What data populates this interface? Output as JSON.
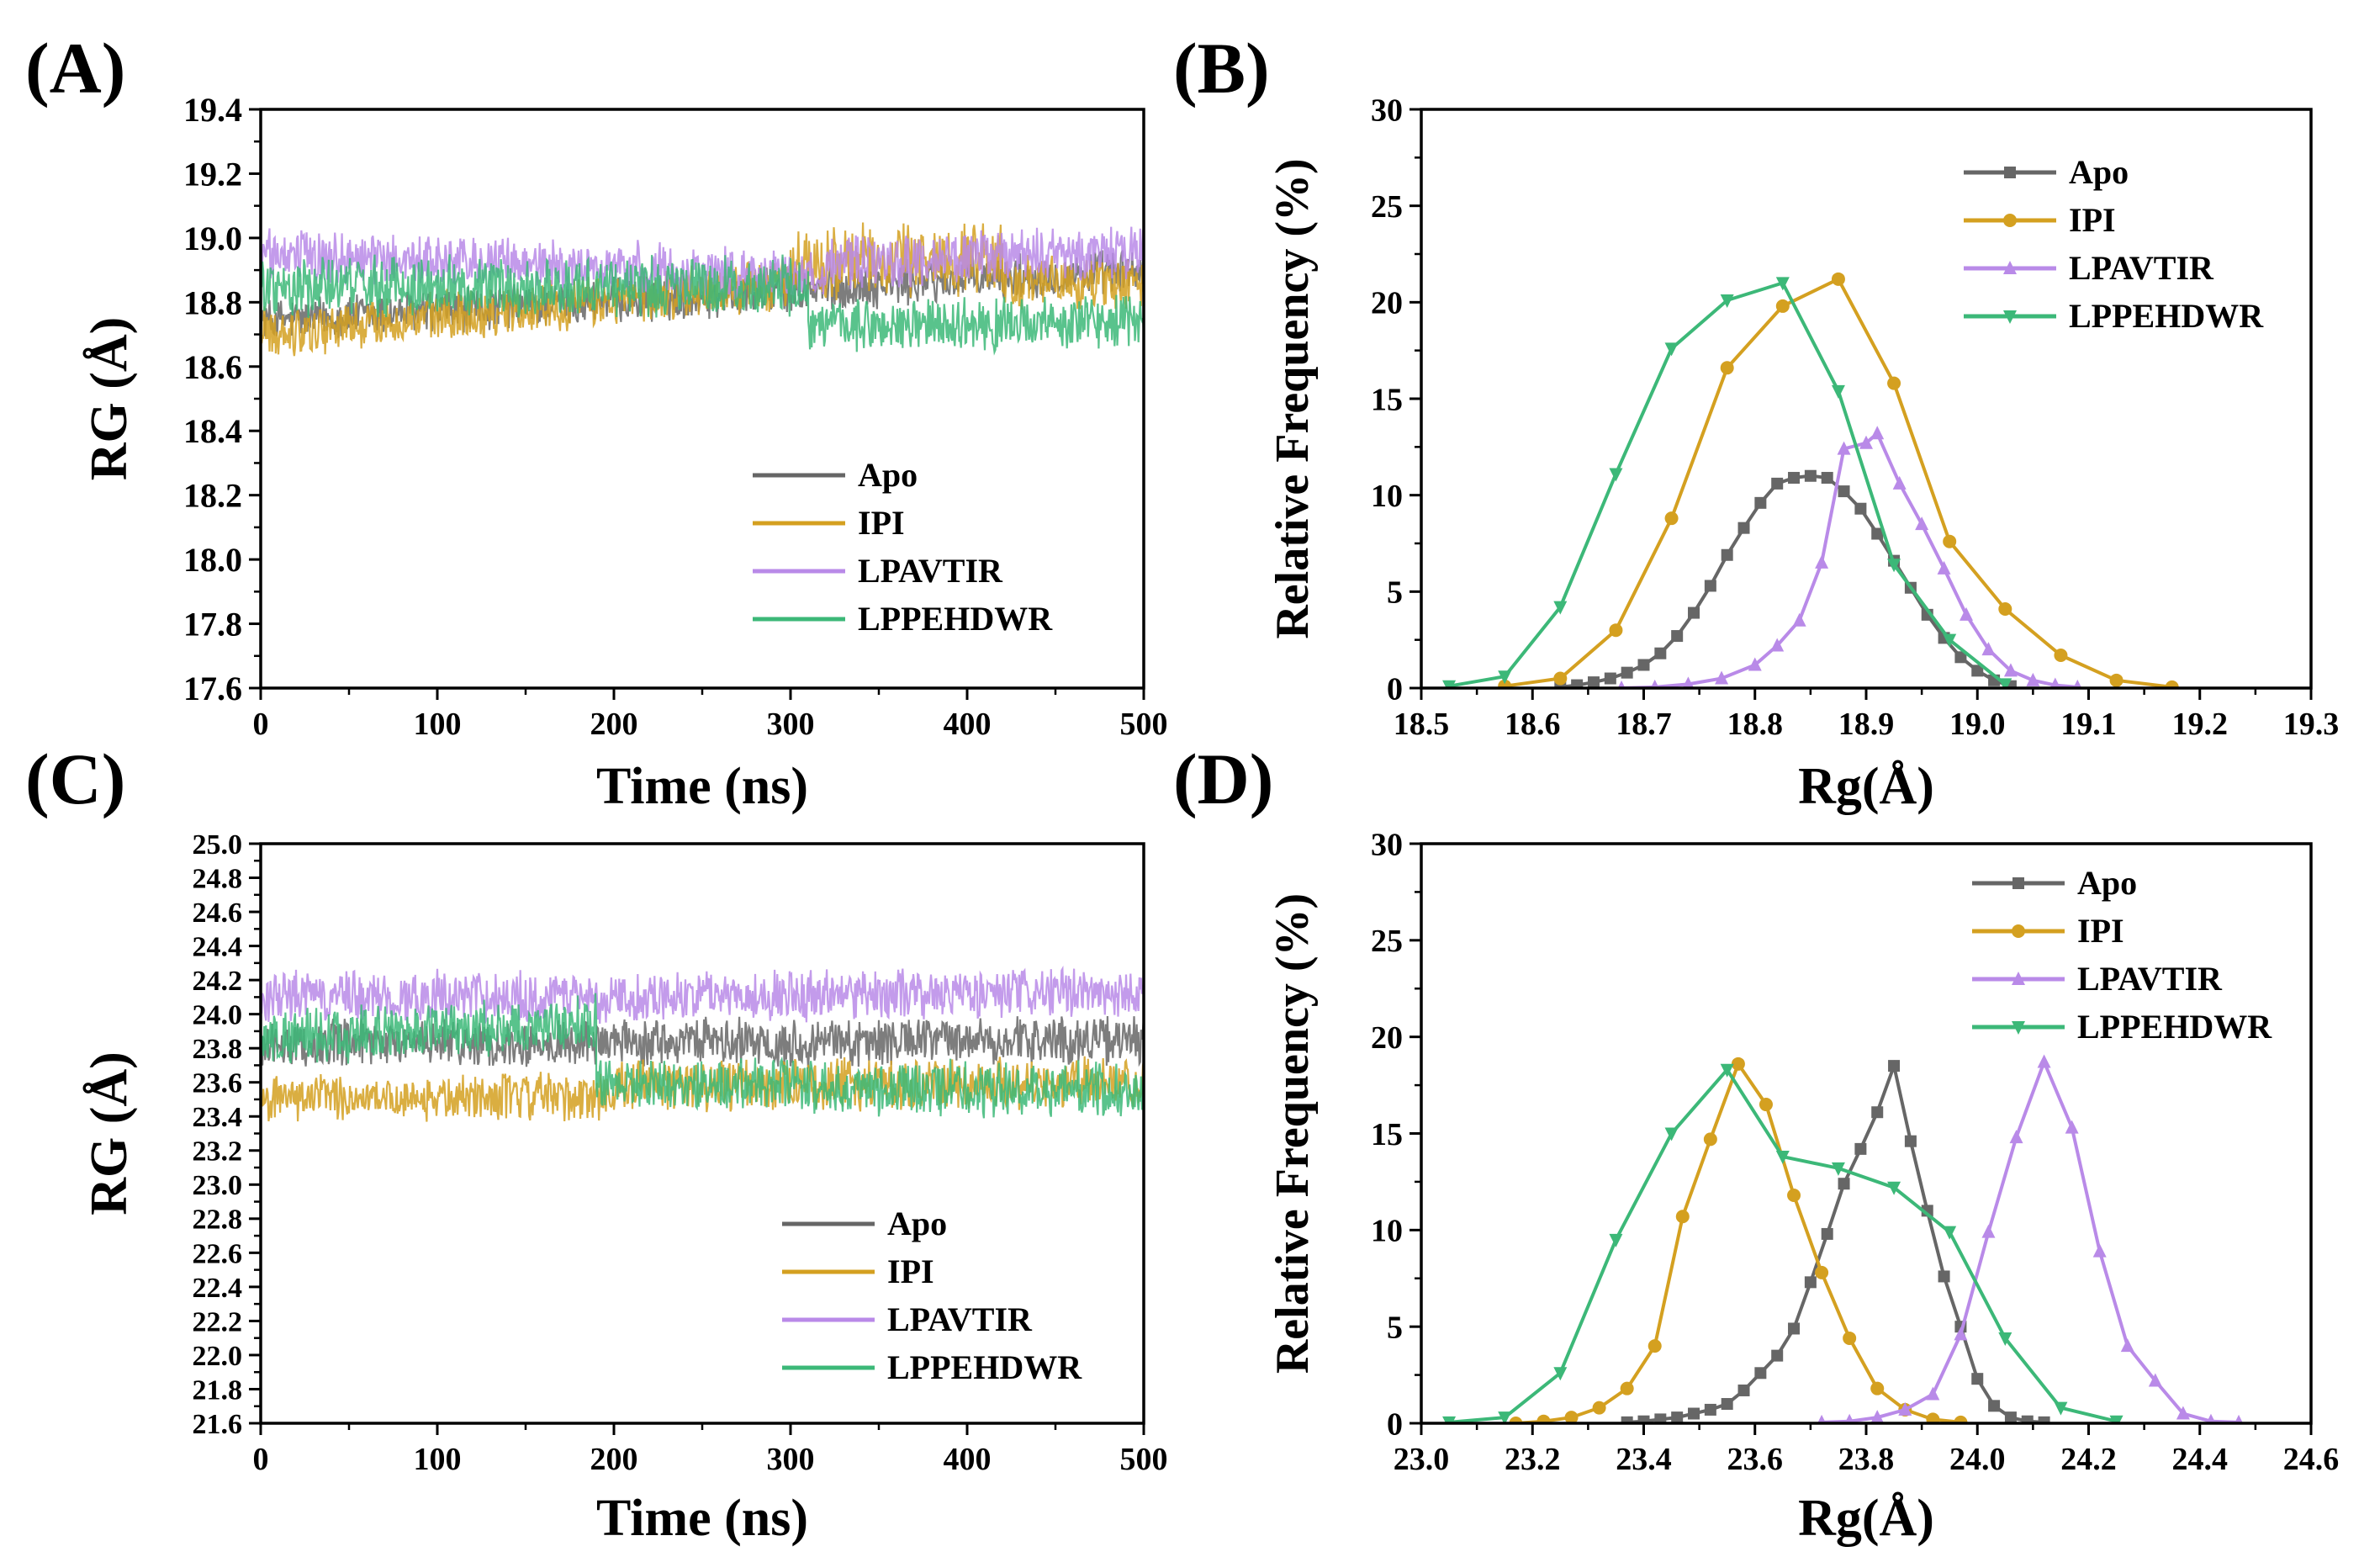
{
  "colors": {
    "Apo": "#666666",
    "IPI": "#d4a020",
    "LPAVTIR": "#b98ae8",
    "LPPEHDWR": "#3cb878"
  },
  "chart_data": [
    {
      "panel_label": "(A)",
      "type": "line",
      "xlabel": "Time (ns)",
      "ylabel": "RG (Å)",
      "xlim": [
        0,
        500
      ],
      "ylim": [
        17.6,
        19.4
      ],
      "xticks": [
        "0",
        "100",
        "200",
        "300",
        "400",
        "500"
      ],
      "yticks": [
        "17.6",
        "17.8",
        "18.0",
        "18.2",
        "18.4",
        "18.6",
        "18.8",
        "19.0",
        "19.2",
        "19.4"
      ],
      "legend_position": "bottom-center",
      "series": [
        {
          "name": "Apo",
          "color": "#666666",
          "segments": [
            {
              "t0": 0,
              "t1": 500,
              "y0": 18.74,
              "y1": 18.9,
              "noise": 0.06
            }
          ]
        },
        {
          "name": "IPI",
          "color": "#d4a020",
          "segments": [
            {
              "t0": 0,
              "t1": 300,
              "y0": 18.7,
              "y1": 18.86,
              "noise": 0.07
            },
            {
              "t0": 300,
              "t1": 420,
              "y0": 18.92,
              "y1": 18.94,
              "noise": 0.1
            },
            {
              "t0": 420,
              "t1": 500,
              "y0": 18.86,
              "y1": 18.86,
              "noise": 0.07
            }
          ]
        },
        {
          "name": "LPAVTIR",
          "color": "#b98ae8",
          "segments": [
            {
              "t0": 0,
              "t1": 320,
              "y0": 18.95,
              "y1": 18.88,
              "noise": 0.07
            },
            {
              "t0": 320,
              "t1": 500,
              "y0": 18.92,
              "y1": 18.96,
              "noise": 0.07
            }
          ]
        },
        {
          "name": "LPPEHDWR",
          "color": "#3cb878",
          "segments": [
            {
              "t0": 0,
              "t1": 310,
              "y0": 18.85,
              "y1": 18.85,
              "noise": 0.08
            },
            {
              "t0": 310,
              "t1": 500,
              "y0": 18.72,
              "y1": 18.74,
              "noise": 0.07
            }
          ]
        }
      ]
    },
    {
      "panel_label": "(B)",
      "type": "line",
      "xlabel": "Rg(Å)",
      "ylabel": "Relative Frequency (%)",
      "xlim": [
        18.5,
        19.3
      ],
      "ylim": [
        0,
        30
      ],
      "xticks": [
        "18.5",
        "18.6",
        "18.7",
        "18.8",
        "18.9",
        "19.0",
        "19.1",
        "19.2",
        "19.3"
      ],
      "yticks": [
        "0",
        "5",
        "10",
        "15",
        "20",
        "25",
        "30"
      ],
      "legend_position": "top-right",
      "series": [
        {
          "name": "Apo",
          "color": "#666666",
          "marker": "square",
          "x": [
            18.625,
            18.64,
            18.655,
            18.67,
            18.685,
            18.7,
            18.715,
            18.73,
            18.745,
            18.76,
            18.775,
            18.79,
            18.805,
            18.82,
            18.835,
            18.85,
            18.865,
            18.88,
            18.895,
            18.91,
            18.925,
            18.94,
            18.955,
            18.97,
            18.985,
            19.0,
            19.015,
            19.03
          ],
          "y": [
            0.05,
            0.15,
            0.3,
            0.5,
            0.8,
            1.2,
            1.8,
            2.7,
            3.9,
            5.3,
            6.9,
            8.3,
            9.6,
            10.6,
            10.9,
            11.0,
            10.9,
            10.2,
            9.3,
            8.0,
            6.6,
            5.2,
            3.8,
            2.6,
            1.6,
            0.9,
            0.4,
            0.1
          ]
        },
        {
          "name": "IPI",
          "color": "#d4a020",
          "marker": "circle",
          "x": [
            18.575,
            18.625,
            18.675,
            18.725,
            18.775,
            18.825,
            18.875,
            18.925,
            18.975,
            19.025,
            19.075,
            19.125,
            19.175
          ],
          "y": [
            0.1,
            0.5,
            3.0,
            8.8,
            16.6,
            19.8,
            21.2,
            15.8,
            7.6,
            4.1,
            1.7,
            0.4,
            0.05
          ]
        },
        {
          "name": "LPAVTIR",
          "color": "#b98ae8",
          "marker": "triangle-up",
          "x": [
            18.68,
            18.71,
            18.74,
            18.77,
            18.8,
            18.82,
            18.84,
            18.86,
            18.88,
            18.9,
            18.91,
            18.93,
            18.95,
            18.97,
            18.99,
            19.01,
            19.03,
            19.05,
            19.07,
            19.09
          ],
          "y": [
            0.0,
            0.05,
            0.2,
            0.5,
            1.2,
            2.2,
            3.5,
            6.5,
            12.4,
            12.7,
            13.2,
            10.6,
            8.5,
            6.2,
            3.8,
            2.0,
            0.9,
            0.4,
            0.15,
            0.05
          ]
        },
        {
          "name": "LPPEHDWR",
          "color": "#3cb878",
          "marker": "triangle-down",
          "x": [
            18.525,
            18.575,
            18.625,
            18.675,
            18.725,
            18.775,
            18.825,
            18.875,
            18.925,
            18.975,
            19.025
          ],
          "y": [
            0.1,
            0.6,
            4.2,
            11.1,
            17.6,
            20.1,
            21.0,
            15.4,
            6.4,
            2.5,
            0.2
          ]
        }
      ]
    },
    {
      "panel_label": "(C)",
      "type": "line",
      "xlabel": "Time (ns)",
      "ylabel": "RG (Å)",
      "xlim": [
        0,
        500
      ],
      "ylim": [
        21.6,
        25.0
      ],
      "xticks": [
        "0",
        "100",
        "200",
        "300",
        "400",
        "500"
      ],
      "yticks": [
        "21.6",
        "21.8",
        "22.0",
        "22.2",
        "22.4",
        "22.6",
        "22.8",
        "23.0",
        "23.2",
        "23.4",
        "23.6",
        "23.8",
        "24.0",
        "24.2",
        "24.4",
        "24.6",
        "24.8",
        "25.0"
      ],
      "legend_position": "bottom-center",
      "series": [
        {
          "name": "Apo",
          "color": "#666666",
          "segments": [
            {
              "t0": 0,
              "t1": 500,
              "y0": 23.82,
              "y1": 23.85,
              "noise": 0.12
            }
          ]
        },
        {
          "name": "IPI",
          "color": "#d4a020",
          "segments": [
            {
              "t0": 0,
              "t1": 200,
              "y0": 23.5,
              "y1": 23.52,
              "noise": 0.12
            },
            {
              "t0": 200,
              "t1": 500,
              "y0": 23.58,
              "y1": 23.6,
              "noise": 0.13
            }
          ]
        },
        {
          "name": "LPAVTIR",
          "color": "#b98ae8",
          "segments": [
            {
              "t0": 0,
              "t1": 500,
              "y0": 24.1,
              "y1": 24.12,
              "noise": 0.13
            }
          ]
        },
        {
          "name": "LPPEHDWR",
          "color": "#3cb878",
          "segments": [
            {
              "t0": 0,
              "t1": 190,
              "y0": 23.85,
              "y1": 23.95,
              "noise": 0.14
            },
            {
              "t0": 190,
              "t1": 500,
              "y0": 23.6,
              "y1": 23.55,
              "noise": 0.14
            }
          ]
        }
      ]
    },
    {
      "panel_label": "(D)",
      "type": "line",
      "xlabel": "Rg(Å)",
      "ylabel": "Relative Frequency (%)",
      "xlim": [
        23.0,
        24.6
      ],
      "ylim": [
        0,
        30
      ],
      "xticks": [
        "23.0",
        "23.2",
        "23.4",
        "23.6",
        "23.8",
        "24.0",
        "24.2",
        "24.4",
        "24.6"
      ],
      "yticks": [
        "0",
        "5",
        "10",
        "15",
        "20",
        "25",
        "30"
      ],
      "legend_position": "top-right",
      "series": [
        {
          "name": "Apo",
          "color": "#666666",
          "marker": "square",
          "x": [
            23.37,
            23.4,
            23.43,
            23.46,
            23.49,
            23.52,
            23.55,
            23.58,
            23.61,
            23.64,
            23.67,
            23.7,
            23.73,
            23.76,
            23.79,
            23.82,
            23.85,
            23.88,
            23.91,
            23.94,
            23.97,
            24.0,
            24.03,
            24.06,
            24.09,
            24.12
          ],
          "y": [
            0.05,
            0.1,
            0.2,
            0.3,
            0.5,
            0.7,
            1.0,
            1.7,
            2.6,
            3.5,
            4.9,
            7.3,
            9.8,
            12.4,
            14.2,
            16.1,
            18.5,
            14.6,
            11.0,
            7.6,
            5.0,
            2.3,
            0.9,
            0.3,
            0.1,
            0.05
          ]
        },
        {
          "name": "IPI",
          "color": "#d4a020",
          "marker": "circle",
          "x": [
            23.17,
            23.22,
            23.27,
            23.32,
            23.37,
            23.42,
            23.47,
            23.52,
            23.57,
            23.62,
            23.67,
            23.72,
            23.77,
            23.82,
            23.87,
            23.92,
            23.97
          ],
          "y": [
            0.0,
            0.1,
            0.3,
            0.8,
            1.8,
            4.0,
            10.7,
            14.7,
            18.6,
            16.5,
            11.8,
            7.8,
            4.4,
            1.8,
            0.7,
            0.2,
            0.05
          ]
        },
        {
          "name": "LPAVTIR",
          "color": "#b98ae8",
          "marker": "triangle-up",
          "x": [
            23.72,
            23.77,
            23.82,
            23.87,
            23.92,
            23.97,
            24.02,
            24.07,
            24.12,
            24.17,
            24.22,
            24.27,
            24.32,
            24.37,
            24.42,
            24.47
          ],
          "y": [
            0.05,
            0.1,
            0.3,
            0.7,
            1.5,
            4.6,
            9.9,
            14.8,
            18.7,
            15.3,
            8.9,
            4.0,
            2.2,
            0.5,
            0.1,
            0.05
          ]
        },
        {
          "name": "LPPEHDWR",
          "color": "#3cb878",
          "marker": "triangle-down",
          "x": [
            23.05,
            23.15,
            23.25,
            23.35,
            23.45,
            23.55,
            23.65,
            23.75,
            23.85,
            23.95,
            24.05,
            24.15,
            24.25
          ],
          "y": [
            0.05,
            0.3,
            2.6,
            9.5,
            15.0,
            18.3,
            13.8,
            13.2,
            12.2,
            9.9,
            4.4,
            0.8,
            0.1
          ]
        }
      ]
    }
  ]
}
